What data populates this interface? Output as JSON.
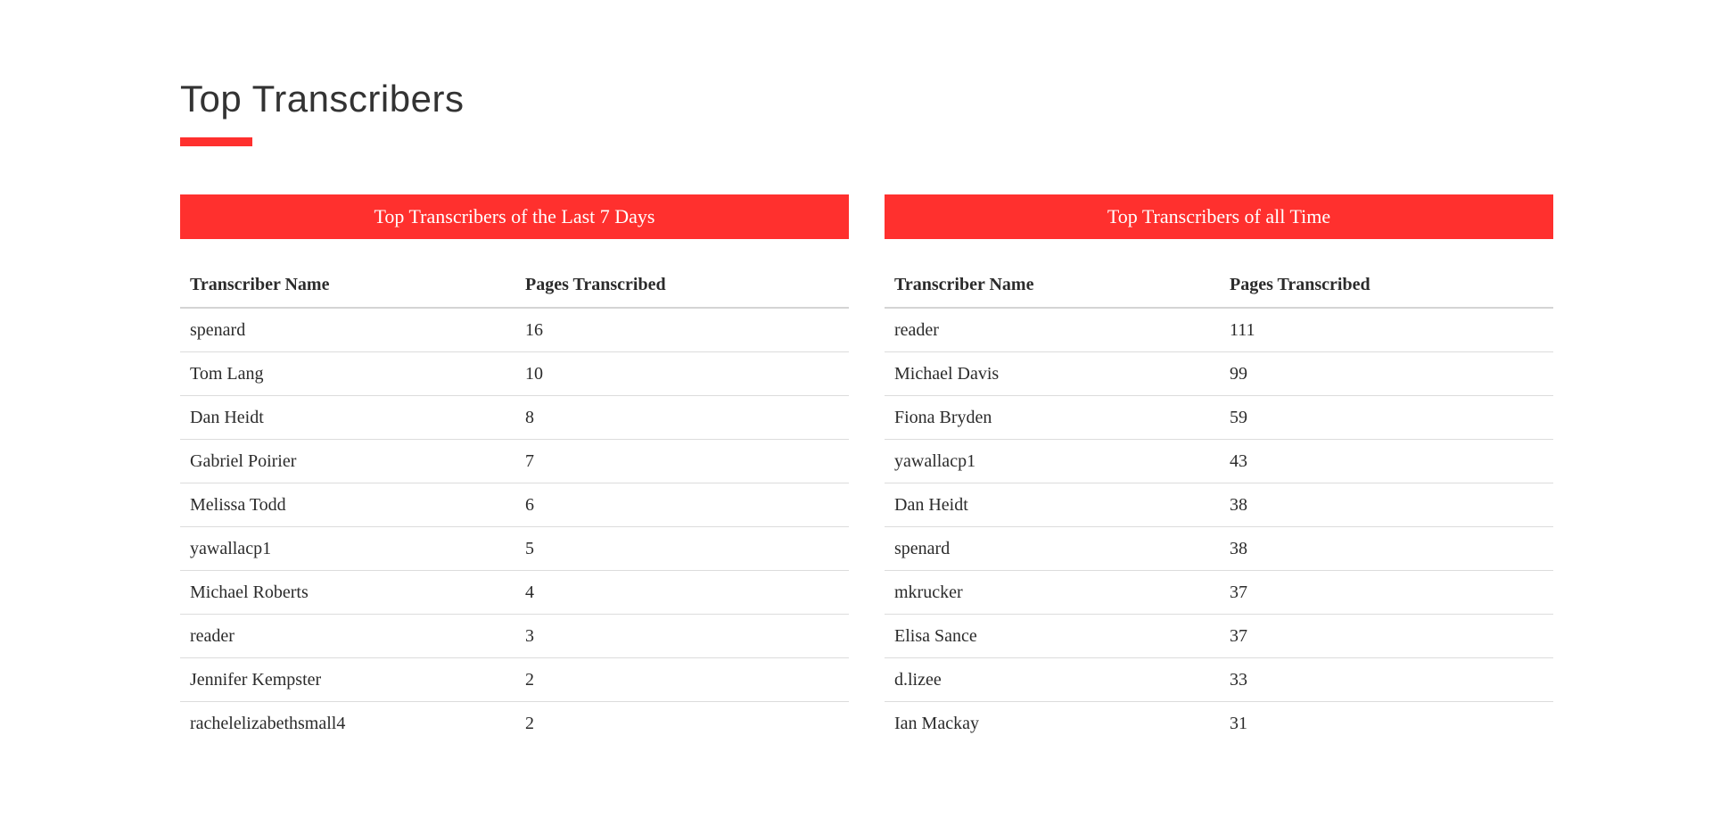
{
  "page": {
    "title": "Top Transcribers"
  },
  "colors": {
    "accent": "#ff302e",
    "text": "#2b2b2b",
    "divider": "#dcdcdc"
  },
  "tables": [
    {
      "title": "Top Transcribers of the Last 7 Days",
      "columns": [
        "Transcriber Name",
        "Pages Transcribed"
      ],
      "rows": [
        {
          "name": "spenard",
          "pages": "16"
        },
        {
          "name": "Tom Lang",
          "pages": "10"
        },
        {
          "name": "Dan Heidt",
          "pages": "8"
        },
        {
          "name": "Gabriel Poirier",
          "pages": "7"
        },
        {
          "name": "Melissa Todd",
          "pages": "6"
        },
        {
          "name": "yawallacp1",
          "pages": "5"
        },
        {
          "name": "Michael Roberts",
          "pages": "4"
        },
        {
          "name": "reader",
          "pages": "3"
        },
        {
          "name": "Jennifer Kempster",
          "pages": "2"
        },
        {
          "name": "rachelelizabethsmall4",
          "pages": "2"
        }
      ]
    },
    {
      "title": "Top Transcribers of all Time",
      "columns": [
        "Transcriber Name",
        "Pages Transcribed"
      ],
      "rows": [
        {
          "name": "reader",
          "pages": "111"
        },
        {
          "name": "Michael Davis",
          "pages": "99"
        },
        {
          "name": "Fiona Bryden",
          "pages": "59"
        },
        {
          "name": "yawallacp1",
          "pages": "43"
        },
        {
          "name": "Dan Heidt",
          "pages": "38"
        },
        {
          "name": "spenard",
          "pages": "38"
        },
        {
          "name": "mkrucker",
          "pages": "37"
        },
        {
          "name": "Elisa Sance",
          "pages": "37"
        },
        {
          "name": "d.lizee",
          "pages": "33"
        },
        {
          "name": "Ian Mackay",
          "pages": "31"
        }
      ]
    }
  ]
}
